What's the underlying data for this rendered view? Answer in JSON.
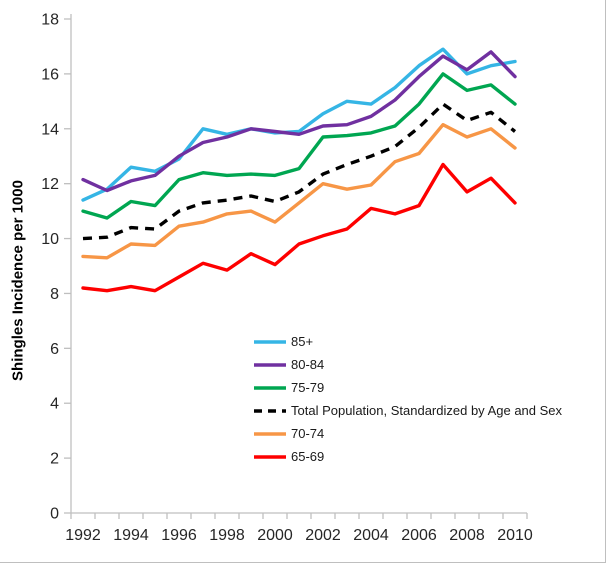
{
  "chart_data": {
    "type": "line",
    "title": "",
    "ylabel": "Shingles Incidence per 1000",
    "xlabel": "",
    "ylim": [
      0,
      18
    ],
    "ytick_step": 2,
    "grid": false,
    "legend_position": "center-right-middle",
    "axis_color": "#bfbfbf",
    "text_color": "#262626",
    "x": [
      1992,
      1993,
      1994,
      1995,
      1996,
      1997,
      1998,
      1999,
      2000,
      2001,
      2002,
      2003,
      2004,
      2005,
      2006,
      2007,
      2008,
      2009,
      2010
    ],
    "xtick_labels": [
      "1992",
      "1994",
      "1996",
      "1998",
      "2000",
      "2002",
      "2004",
      "2006",
      "2008",
      "2010"
    ],
    "series": [
      {
        "name": "85+",
        "color": "#35b5e5",
        "dash": false,
        "values": [
          11.4,
          11.8,
          12.6,
          12.45,
          12.9,
          14.0,
          13.8,
          14.0,
          13.85,
          13.9,
          14.55,
          15.0,
          14.9,
          15.5,
          16.3,
          16.9,
          16.0,
          16.3,
          16.45
        ]
      },
      {
        "name": "80-84",
        "color": "#7030a0",
        "dash": false,
        "values": [
          12.15,
          11.75,
          12.1,
          12.3,
          13.0,
          13.5,
          13.7,
          14.0,
          13.9,
          13.8,
          14.1,
          14.15,
          14.45,
          15.05,
          15.9,
          16.65,
          16.15,
          16.8,
          15.9
        ]
      },
      {
        "name": "75-79",
        "color": "#00a651",
        "dash": false,
        "values": [
          11.0,
          10.75,
          11.35,
          11.2,
          12.15,
          12.4,
          12.3,
          12.35,
          12.3,
          12.55,
          13.7,
          13.75,
          13.85,
          14.1,
          14.9,
          16.0,
          15.4,
          15.6,
          14.9
        ]
      },
      {
        "name": "Total Population, Standardized by Age and Sex",
        "color": "#000000",
        "dash": true,
        "values": [
          10.0,
          10.05,
          10.4,
          10.35,
          11.0,
          11.3,
          11.4,
          11.55,
          11.35,
          11.7,
          12.35,
          12.7,
          13.0,
          13.35,
          14.05,
          14.9,
          14.3,
          14.6,
          13.9
        ]
      },
      {
        "name": "70-74",
        "color": "#f79646",
        "dash": false,
        "values": [
          9.35,
          9.3,
          9.8,
          9.75,
          10.45,
          10.6,
          10.9,
          11.0,
          10.6,
          11.3,
          12.0,
          11.8,
          11.95,
          12.8,
          13.1,
          14.15,
          13.7,
          14.0,
          13.3
        ]
      },
      {
        "name": "65-69",
        "color": "#fe0000",
        "dash": false,
        "values": [
          8.2,
          8.1,
          8.25,
          8.1,
          8.6,
          9.1,
          8.85,
          9.45,
          9.05,
          9.8,
          10.1,
          10.35,
          11.1,
          10.9,
          11.2,
          12.7,
          11.7,
          12.2,
          11.3
        ]
      }
    ]
  }
}
